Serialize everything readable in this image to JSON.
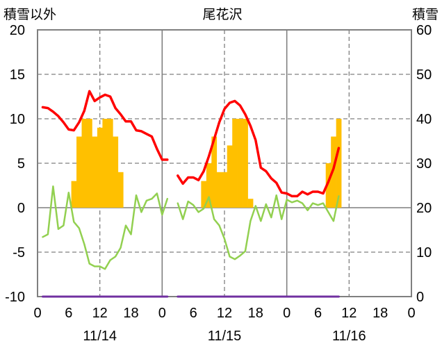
{
  "chart_data": {
    "type": "line",
    "title": "尾花沢",
    "ylabel": "積雪以外",
    "y2label": "積雪",
    "ylim": [
      -10,
      20
    ],
    "y2lim": [
      0,
      60
    ],
    "yticks": [
      -10,
      -5,
      0,
      5,
      10,
      15,
      20
    ],
    "y2ticks": [
      0,
      10,
      20,
      30,
      40,
      50,
      60
    ],
    "grid": true,
    "date_labels": [
      "11/14",
      "11/15",
      "11/16"
    ],
    "xlim": [
      {
        "date": "11/14",
        "hour": 0
      },
      {
        "date": "11/16",
        "hour": 24
      }
    ],
    "xticks": [
      {
        "date": "11/14",
        "hour": 0,
        "label": "0"
      },
      {
        "date": "11/14",
        "hour": 6,
        "label": "6"
      },
      {
        "date": "11/14",
        "hour": 12,
        "label": "12"
      },
      {
        "date": "11/14",
        "hour": 18,
        "label": "18"
      },
      {
        "date": "11/15",
        "hour": 0,
        "label": "0"
      },
      {
        "date": "11/15",
        "hour": 6,
        "label": "6"
      },
      {
        "date": "11/15",
        "hour": 12,
        "label": "12"
      },
      {
        "date": "11/15",
        "hour": 18,
        "label": "18"
      },
      {
        "date": "11/16",
        "hour": 0,
        "label": "0"
      },
      {
        "date": "11/16",
        "hour": 6,
        "label": "6"
      },
      {
        "date": "11/16",
        "hour": 12,
        "label": "12"
      },
      {
        "date": "11/16",
        "hour": 18,
        "label": "18"
      },
      {
        "date": "11/16",
        "hour": 24,
        "label": "0"
      }
    ],
    "x": [
      {
        "date": "11/14",
        "hour": 1
      },
      {
        "date": "11/14",
        "hour": 2
      },
      {
        "date": "11/14",
        "hour": 3
      },
      {
        "date": "11/14",
        "hour": 4
      },
      {
        "date": "11/14",
        "hour": 5
      },
      {
        "date": "11/14",
        "hour": 6
      },
      {
        "date": "11/14",
        "hour": 7
      },
      {
        "date": "11/14",
        "hour": 8
      },
      {
        "date": "11/14",
        "hour": 9
      },
      {
        "date": "11/14",
        "hour": 10
      },
      {
        "date": "11/14",
        "hour": 11
      },
      {
        "date": "11/14",
        "hour": 12
      },
      {
        "date": "11/14",
        "hour": 13
      },
      {
        "date": "11/14",
        "hour": 14
      },
      {
        "date": "11/14",
        "hour": 15
      },
      {
        "date": "11/14",
        "hour": 16
      },
      {
        "date": "11/14",
        "hour": 17
      },
      {
        "date": "11/14",
        "hour": 18
      },
      {
        "date": "11/14",
        "hour": 19
      },
      {
        "date": "11/14",
        "hour": 20
      },
      {
        "date": "11/14",
        "hour": 21
      },
      {
        "date": "11/14",
        "hour": 22
      },
      {
        "date": "11/14",
        "hour": 23
      },
      {
        "date": "11/15",
        "hour": 0
      },
      {
        "date": "11/15",
        "hour": 1
      },
      {
        "date": "11/15",
        "hour": 2
      },
      {
        "date": "11/15",
        "hour": 3
      },
      {
        "date": "11/15",
        "hour": 4
      },
      {
        "date": "11/15",
        "hour": 5
      },
      {
        "date": "11/15",
        "hour": 6
      },
      {
        "date": "11/15",
        "hour": 7
      },
      {
        "date": "11/15",
        "hour": 8
      },
      {
        "date": "11/15",
        "hour": 9
      },
      {
        "date": "11/15",
        "hour": 10
      },
      {
        "date": "11/15",
        "hour": 11
      },
      {
        "date": "11/15",
        "hour": 12
      },
      {
        "date": "11/15",
        "hour": 13
      },
      {
        "date": "11/15",
        "hour": 14
      },
      {
        "date": "11/15",
        "hour": 15
      },
      {
        "date": "11/15",
        "hour": 16
      },
      {
        "date": "11/15",
        "hour": 17
      },
      {
        "date": "11/15",
        "hour": 18
      },
      {
        "date": "11/15",
        "hour": 19
      },
      {
        "date": "11/15",
        "hour": 20
      },
      {
        "date": "11/15",
        "hour": 21
      },
      {
        "date": "11/15",
        "hour": 22
      },
      {
        "date": "11/15",
        "hour": 23
      },
      {
        "date": "11/16",
        "hour": 0
      },
      {
        "date": "11/16",
        "hour": 1
      },
      {
        "date": "11/16",
        "hour": 2
      },
      {
        "date": "11/16",
        "hour": 3
      },
      {
        "date": "11/16",
        "hour": 4
      },
      {
        "date": "11/16",
        "hour": 5
      },
      {
        "date": "11/16",
        "hour": 6
      },
      {
        "date": "11/16",
        "hour": 7
      },
      {
        "date": "11/16",
        "hour": 8
      },
      {
        "date": "11/16",
        "hour": 9
      },
      {
        "date": "11/16",
        "hour": 10
      }
    ],
    "series": [
      {
        "type": "bar",
        "axis": "left",
        "color": "#FFC000",
        "values": [
          null,
          null,
          null,
          null,
          null,
          null,
          3,
          8,
          10,
          10,
          8,
          9,
          10,
          10,
          8,
          4,
          null,
          null,
          null,
          null,
          null,
          null,
          null,
          null,
          null,
          null,
          null,
          null,
          null,
          null,
          null,
          3,
          5,
          8,
          4,
          4,
          7,
          10,
          10,
          10,
          1,
          null,
          null,
          null,
          null,
          null,
          null,
          null,
          null,
          null,
          null,
          null,
          null,
          null,
          null,
          5,
          8,
          10
        ]
      },
      {
        "type": "line",
        "axis": "left",
        "color": "#92D050",
        "values": [
          -3.3,
          -3.0,
          2.4,
          -2.4,
          -2.0,
          1.7,
          -1.6,
          -2.3,
          -4.1,
          -6.3,
          -6.6,
          -6.6,
          -6.9,
          -5.9,
          -5.5,
          -4.5,
          -2.0,
          -3.0,
          1.4,
          -0.5,
          0.8,
          1.0,
          1.6,
          -0.8,
          1.0,
          null,
          0.5,
          -1.3,
          0.7,
          0.3,
          -0.5,
          -0.1,
          1.2,
          -1.3,
          -2.0,
          -3.5,
          -5.5,
          -5.8,
          -5.4,
          -4.9,
          -1.5,
          0.2,
          -1.5,
          0.4,
          -1.1,
          1.4,
          -1.3,
          0.9,
          0.6,
          0.8,
          0.5,
          -0.3,
          0.5,
          0.3,
          0.5,
          -0.5,
          -1.5,
          1.3
        ]
      },
      {
        "type": "line",
        "axis": "left",
        "color": "#FF0000",
        "values": [
          11.3,
          11.2,
          10.8,
          10.3,
          9.6,
          8.8,
          8.7,
          9.6,
          10.9,
          13.1,
          12.0,
          12.4,
          12.7,
          12.5,
          11.2,
          10.5,
          9.7,
          9.7,
          8.7,
          8.6,
          8.3,
          8.0,
          6.6,
          5.4,
          5.4,
          null,
          3.6,
          2.7,
          3.4,
          3.4,
          3.1,
          4.1,
          5.8,
          7.7,
          9.6,
          11.1,
          11.8,
          12.0,
          11.5,
          10.5,
          9.2,
          7.6,
          4.5,
          4.1,
          3.3,
          2.8,
          1.7,
          1.6,
          1.3,
          1.3,
          1.8,
          1.5,
          1.8,
          1.8,
          1.6,
          2.9,
          4.4,
          6.7
        ]
      },
      {
        "type": "line",
        "axis": "right",
        "color": "#7030A0",
        "values": [
          0,
          0,
          0,
          0,
          0,
          0,
          0,
          0,
          0,
          0,
          0,
          0,
          0,
          0,
          0,
          0,
          0,
          0,
          0,
          0,
          0,
          0,
          0,
          0,
          0,
          null,
          0,
          0,
          0,
          0,
          0,
          0,
          0,
          0,
          0,
          0,
          0,
          0,
          0,
          0,
          0,
          0,
          0,
          0,
          0,
          0,
          0,
          0,
          0,
          0,
          0,
          0,
          0,
          0,
          0,
          0,
          0,
          0
        ]
      }
    ]
  }
}
